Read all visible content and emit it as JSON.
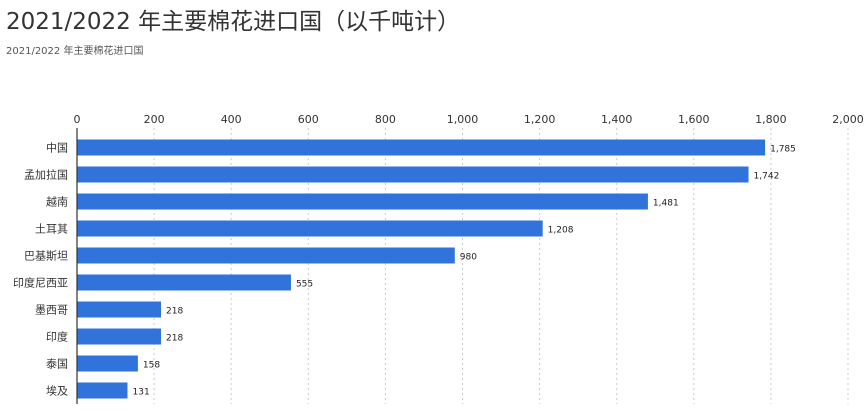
{
  "chart_data": {
    "type": "bar",
    "orientation": "horizontal",
    "title": "2021/2022 年主要棉花进口国（以千吨计）",
    "subtitle": "2021/2022 年主要棉花进口国",
    "categories": [
      "中国",
      "孟加拉国",
      "越南",
      "土耳其",
      "巴基斯坦",
      "印度尼西亚",
      "墨西哥",
      "印度",
      "泰国",
      "埃及"
    ],
    "values": [
      1785,
      1742,
      1481,
      1208,
      980,
      555,
      218,
      218,
      158,
      131
    ],
    "value_labels": [
      "1,785",
      "1,742",
      "1,481",
      "1,208",
      "980",
      "555",
      "218",
      "218",
      "158",
      "131"
    ],
    "xlim": [
      0,
      2000
    ],
    "ticks": [
      0,
      200,
      400,
      600,
      800,
      1000,
      1200,
      1400,
      1600,
      1800,
      2000
    ],
    "tick_labels": [
      "0",
      "200",
      "400",
      "600",
      "800",
      "1,000",
      "1,200",
      "1,400",
      "1,600",
      "1,800",
      "2,000"
    ],
    "axis_position": "top",
    "grid": true,
    "bar_color": "#2f73db",
    "grid_color": "#cccccc",
    "axis_color": "#333333"
  }
}
